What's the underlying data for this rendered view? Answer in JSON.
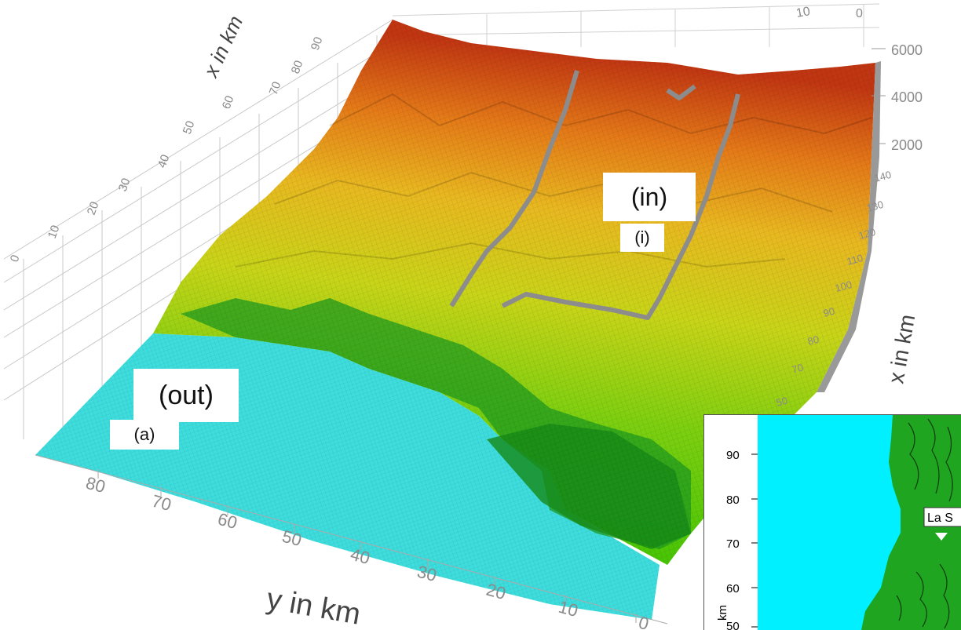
{
  "main_plot": {
    "x_axis_label": "x in km",
    "x_axis_label_right": "x in km",
    "y_axis_label": "y in km",
    "y_ticks": [
      "80",
      "70",
      "60",
      "50",
      "40",
      "30",
      "20",
      "10",
      "0"
    ],
    "z_ticks": [
      "6000",
      "4000",
      "2000"
    ],
    "x_ticks_top": [
      "0",
      "10",
      "20",
      "30",
      "40",
      "50",
      "60",
      "70",
      "80",
      "90"
    ],
    "x_ticks_right": [
      "50",
      "60",
      "70",
      "80",
      "90",
      "100",
      "110",
      "120",
      "130",
      "140"
    ],
    "label_in": "(in)",
    "label_i": "(i)",
    "label_out": "(out)",
    "label_a": "(a)"
  },
  "inset": {
    "y_ticks": [
      "90",
      "80",
      "70",
      "60",
      "50"
    ],
    "axis_label": "km",
    "place_label": "La S"
  },
  "colors": {
    "ocean": "#3fdcdc",
    "lowland": "#1f9a1f",
    "green": "#40c000",
    "yellow": "#d8d020",
    "orange": "#e07818",
    "red": "#c03010",
    "river": "#8c8c8c"
  }
}
